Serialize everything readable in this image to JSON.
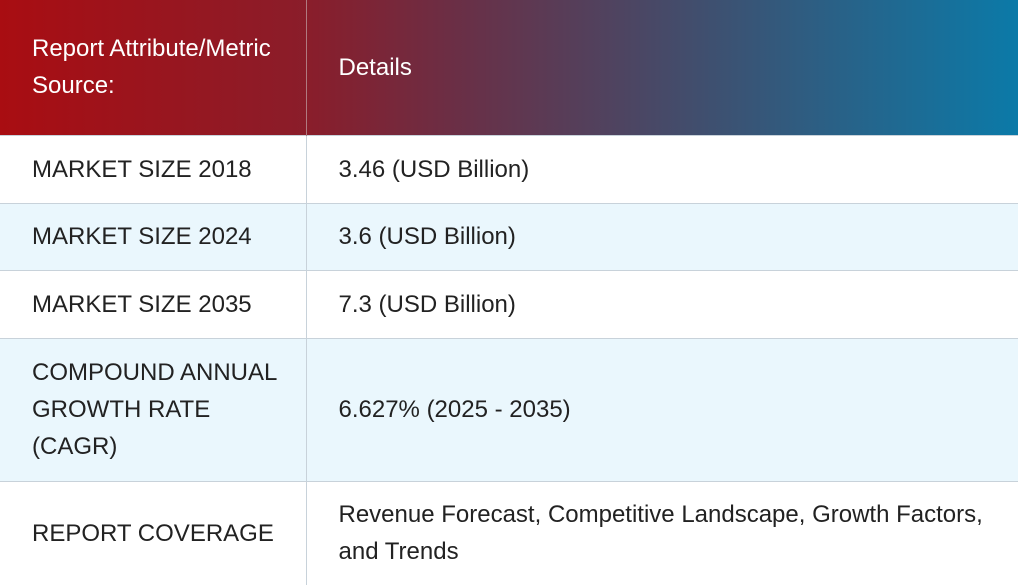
{
  "header": {
    "col1": "Report Attribute/Metric Source:",
    "col2": "Details"
  },
  "rows": [
    {
      "metric": "MARKET SIZE 2018",
      "details": "3.46 (USD Billion)"
    },
    {
      "metric": "MARKET SIZE 2024",
      "details": "3.6 (USD Billion)"
    },
    {
      "metric": "MARKET SIZE 2035",
      "details": "7.3 (USD Billion)"
    },
    {
      "metric": "COMPOUND ANNUAL GROWTH RATE (CAGR)",
      "details": "6.627% (2025 - 2035)"
    },
    {
      "metric": "REPORT COVERAGE",
      "details": "Revenue Forecast, Competitive Landscape, Growth Factors, and Trends"
    }
  ],
  "colors": {
    "header_start": "#a90d12",
    "header_end": "#0b7aa8",
    "alt_row": "#eaf7fd"
  }
}
